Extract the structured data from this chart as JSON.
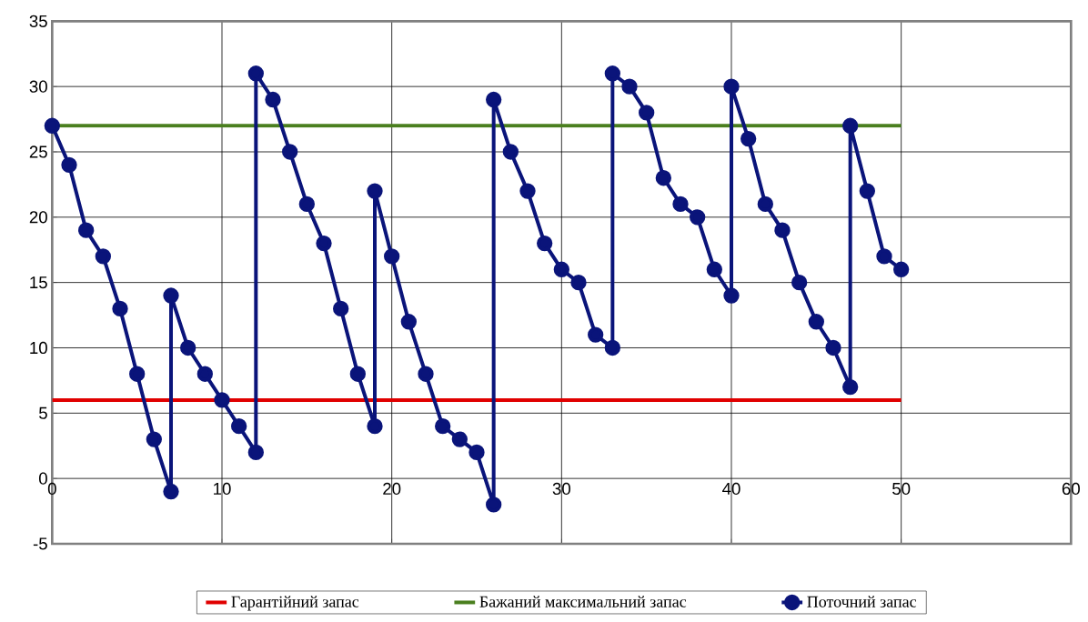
{
  "chart_data": {
    "type": "line",
    "xlim": [
      0,
      60
    ],
    "ylim": [
      -5,
      35
    ],
    "xticks": [
      0,
      10,
      20,
      30,
      40,
      50,
      60
    ],
    "yticks": [
      -5,
      0,
      5,
      10,
      15,
      20,
      25,
      30,
      35
    ],
    "grid": true,
    "legend": "bottom",
    "series": [
      {
        "name": "Гарантійний запас",
        "color": "#e00000",
        "marker": "none",
        "x": [
          0,
          50
        ],
        "values": [
          6,
          6
        ]
      },
      {
        "name": "Бажаний максимальний запас",
        "color": "#4a7f1f",
        "marker": "none",
        "x": [
          0,
          50
        ],
        "values": [
          27,
          27
        ]
      },
      {
        "name": "Поточний запас",
        "color": "#0a147a",
        "marker": "circle",
        "x": [
          0,
          1,
          2,
          3,
          4,
          5,
          6,
          7,
          7,
          8,
          9,
          10,
          11,
          12,
          12,
          13,
          14,
          15,
          16,
          17,
          18,
          19,
          19,
          20,
          21,
          22,
          23,
          24,
          25,
          26,
          26,
          27,
          28,
          29,
          30,
          31,
          32,
          33,
          33,
          34,
          35,
          36,
          37,
          38,
          39,
          40,
          40,
          41,
          42,
          43,
          44,
          45,
          46,
          47,
          47,
          48,
          49,
          50
        ],
        "values": [
          27,
          24,
          19,
          17,
          13,
          8,
          3,
          -1,
          14,
          10,
          8,
          6,
          4,
          2,
          31,
          29,
          25,
          21,
          18,
          13,
          8,
          4,
          22,
          17,
          12,
          8,
          4,
          3,
          2,
          -2,
          29,
          25,
          22,
          18,
          16,
          15,
          11,
          10,
          31,
          30,
          28,
          23,
          21,
          20,
          16,
          14,
          30,
          26,
          21,
          19,
          15,
          12,
          10,
          7,
          27,
          22,
          17,
          16
        ]
      }
    ]
  }
}
